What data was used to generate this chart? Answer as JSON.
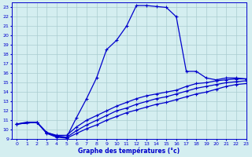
{
  "xlabel": "Graphe des températures (°c)",
  "bg_color": "#d4eef0",
  "grid_color": "#aaccd0",
  "line_color": "#0000cc",
  "xlim": [
    -0.5,
    23
  ],
  "ylim": [
    9,
    23.5
  ],
  "xticks": [
    0,
    1,
    2,
    3,
    4,
    5,
    6,
    7,
    8,
    9,
    10,
    11,
    12,
    13,
    14,
    15,
    16,
    17,
    18,
    19,
    20,
    21,
    22,
    23
  ],
  "yticks": [
    9,
    10,
    11,
    12,
    13,
    14,
    15,
    16,
    17,
    18,
    19,
    20,
    21,
    22,
    23
  ],
  "curve1_x": [
    0,
    1,
    2,
    3,
    4,
    5,
    6,
    7,
    8,
    9,
    10,
    11,
    12,
    13,
    14,
    15,
    16,
    17,
    18,
    19,
    20,
    21,
    22,
    23
  ],
  "curve1_y": [
    10.6,
    10.8,
    10.8,
    9.7,
    9.3,
    9.2,
    11.3,
    13.3,
    15.5,
    18.5,
    19.5,
    21.0,
    23.2,
    23.2,
    23.1,
    23.0,
    22.0,
    16.2,
    16.2,
    15.5,
    15.3,
    15.5,
    15.5,
    15.4
  ],
  "curve2_x": [
    0,
    2,
    3,
    4,
    5,
    6,
    7,
    8,
    9,
    10,
    11,
    12,
    13,
    14,
    15,
    16,
    17,
    18,
    19,
    20,
    21,
    22,
    23
  ],
  "curve2_y": [
    10.6,
    10.8,
    9.7,
    9.4,
    9.4,
    10.3,
    11.0,
    11.5,
    12.0,
    12.5,
    12.9,
    13.3,
    13.6,
    13.8,
    14.0,
    14.2,
    14.6,
    14.9,
    15.0,
    15.2,
    15.3,
    15.4,
    15.4
  ],
  "curve3_x": [
    0,
    2,
    3,
    4,
    5,
    6,
    7,
    8,
    9,
    10,
    11,
    12,
    13,
    14,
    15,
    16,
    17,
    18,
    19,
    20,
    21,
    22,
    23
  ],
  "curve3_y": [
    10.6,
    10.8,
    9.7,
    9.3,
    9.2,
    9.9,
    10.5,
    11.0,
    11.5,
    12.0,
    12.3,
    12.7,
    13.0,
    13.3,
    13.5,
    13.8,
    14.1,
    14.4,
    14.6,
    14.8,
    15.0,
    15.1,
    15.2
  ],
  "curve4_x": [
    0,
    2,
    3,
    4,
    5,
    6,
    7,
    8,
    9,
    10,
    11,
    12,
    13,
    14,
    15,
    16,
    17,
    18,
    19,
    20,
    21,
    22,
    23
  ],
  "curve4_y": [
    10.6,
    10.8,
    9.6,
    9.2,
    9.1,
    9.6,
    10.1,
    10.5,
    11.0,
    11.4,
    11.8,
    12.1,
    12.4,
    12.7,
    12.9,
    13.2,
    13.5,
    13.8,
    14.0,
    14.3,
    14.6,
    14.8,
    14.9
  ]
}
